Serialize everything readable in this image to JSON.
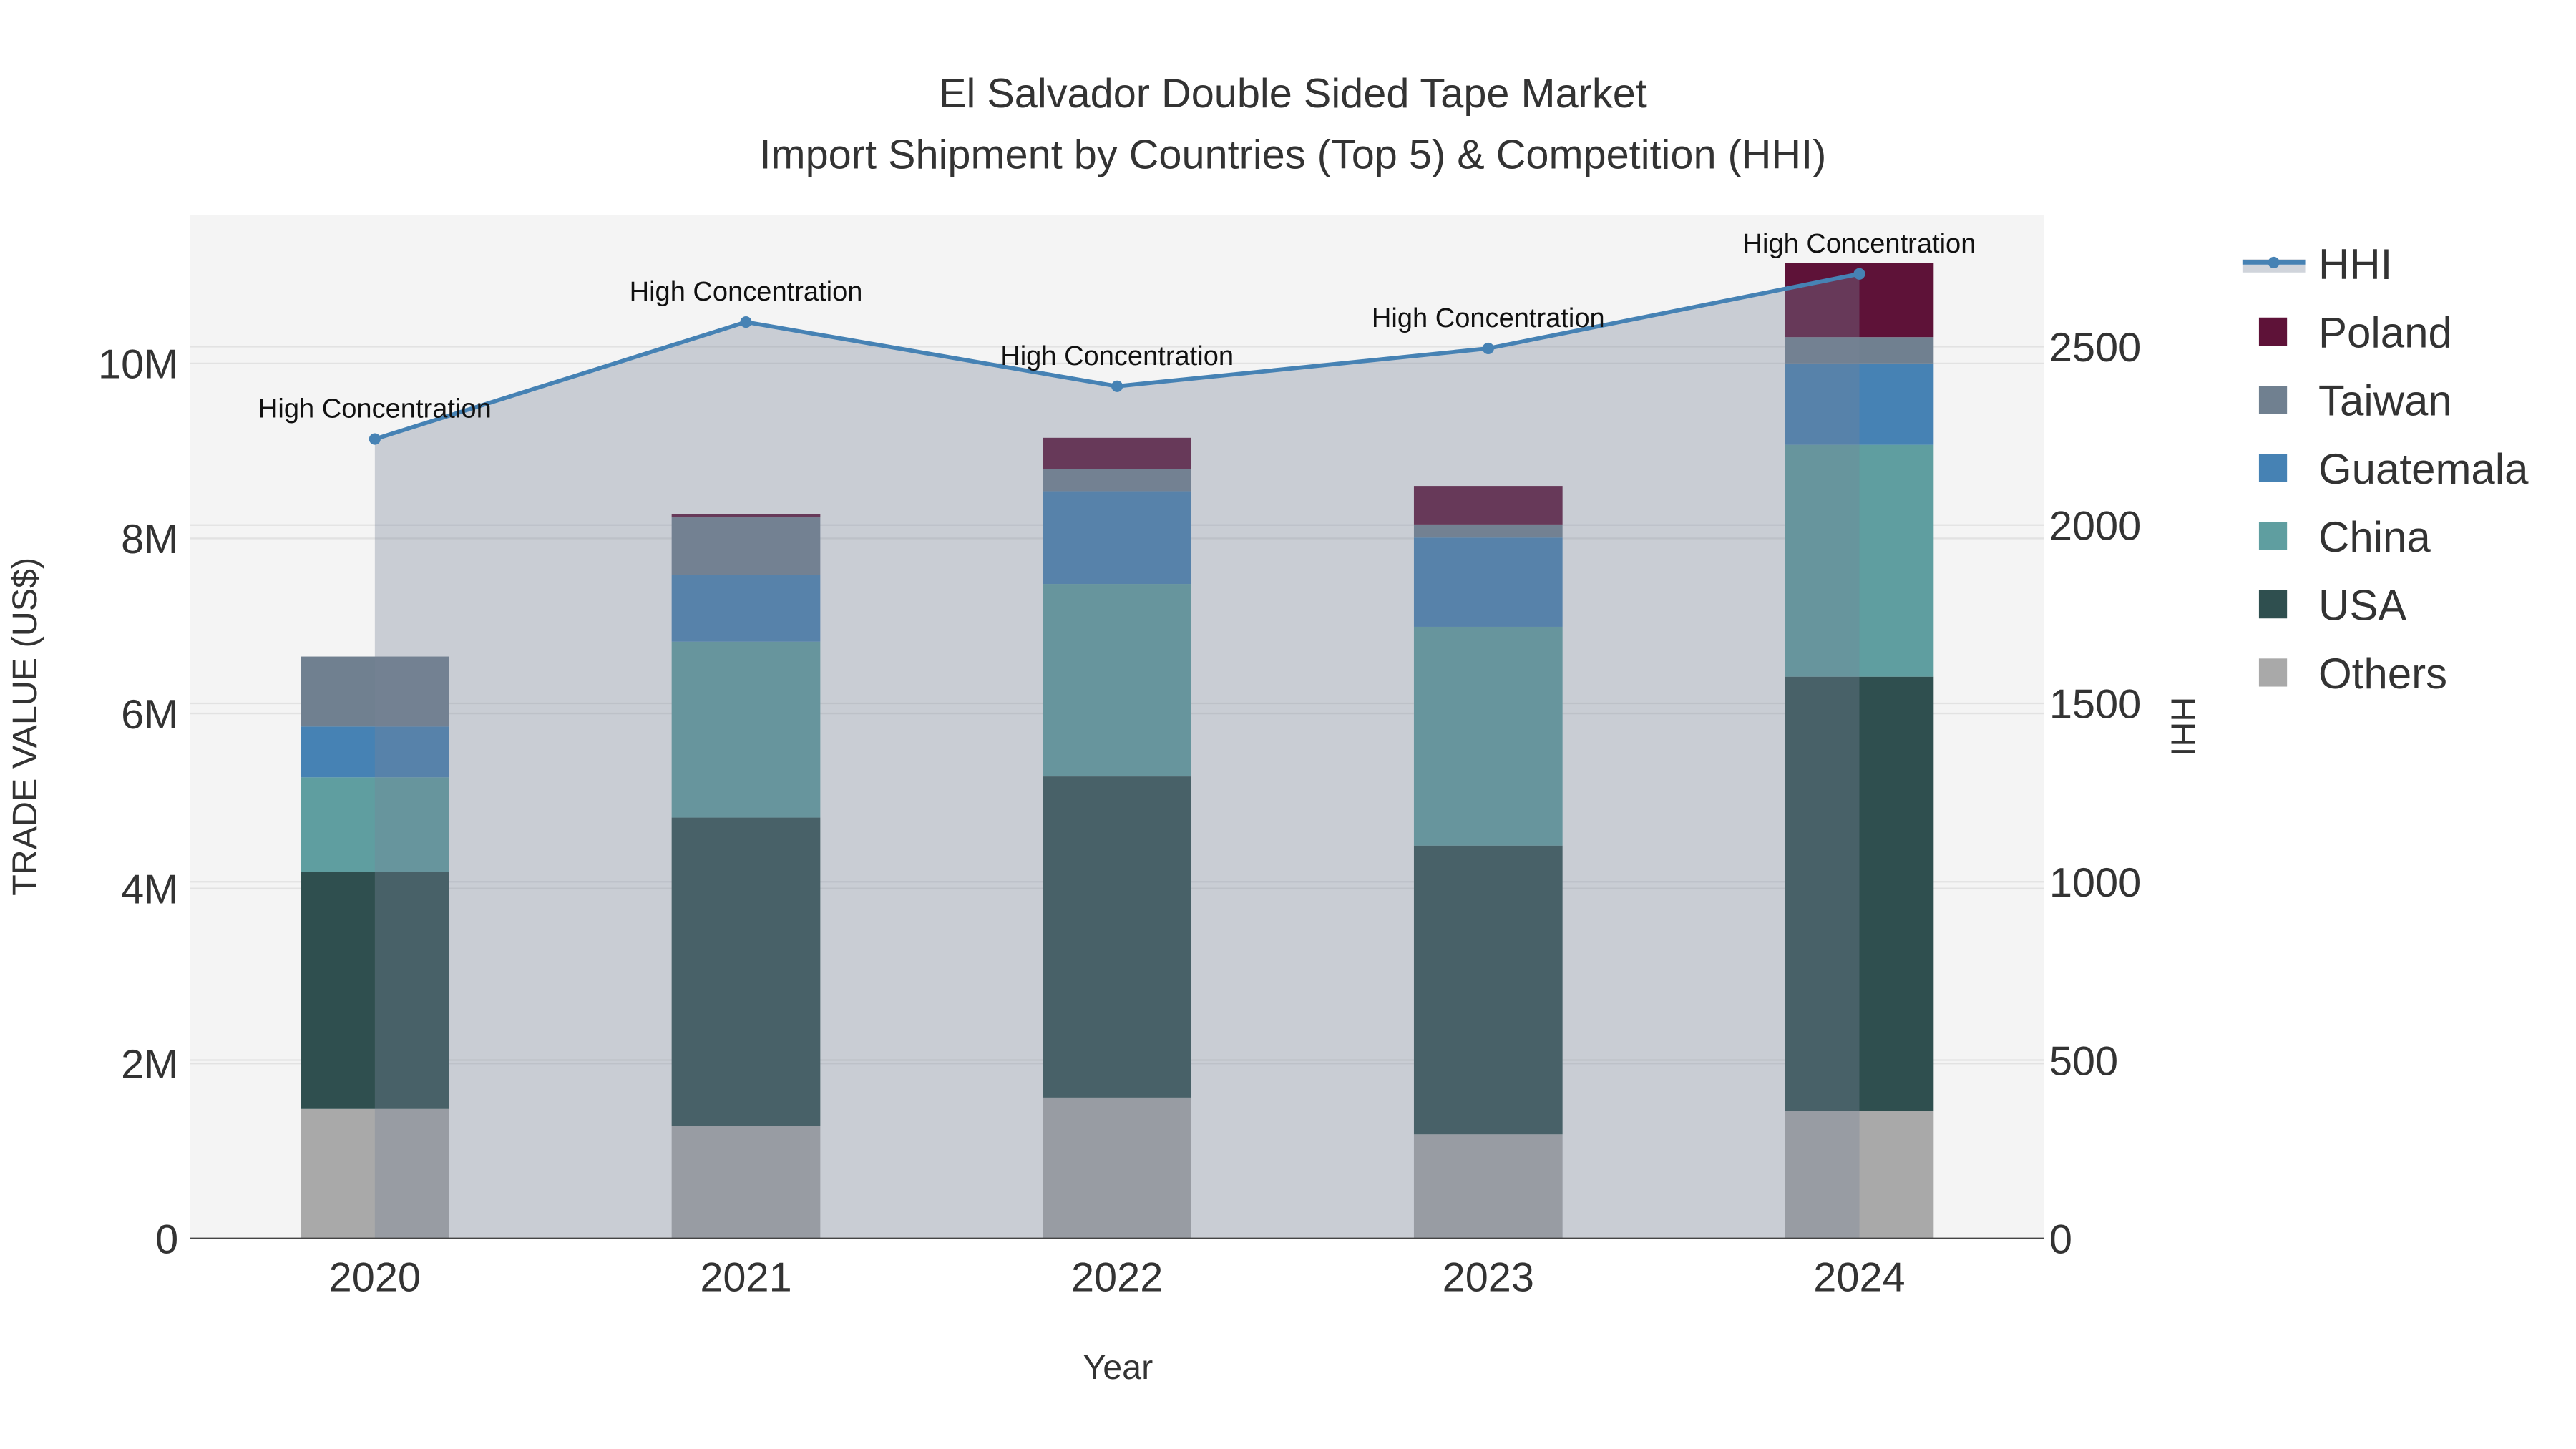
{
  "chart_data": {
    "type": "bar",
    "title_line1": "El Salvador Double Sided Tape Market",
    "title_line2": "Import Shipment by Countries (Top 5) & Competition (HHI)",
    "xlabel": "Year",
    "ylabel": "TRADE VALUE (US$)",
    "y2label": "HHI",
    "categories": [
      "2020",
      "2021",
      "2022",
      "2023",
      "2024"
    ],
    "ylim": [
      0,
      11700000
    ],
    "y2lim": [
      0,
      2870
    ],
    "yticks": [
      {
        "v": 0,
        "label": "0"
      },
      {
        "v": 2000000,
        "label": "2M"
      },
      {
        "v": 4000000,
        "label": "4M"
      },
      {
        "v": 6000000,
        "label": "6M"
      },
      {
        "v": 8000000,
        "label": "8M"
      },
      {
        "v": 10000000,
        "label": "10M"
      }
    ],
    "y2ticks": [
      {
        "v": 0,
        "label": "0"
      },
      {
        "v": 500,
        "label": "500"
      },
      {
        "v": 1000,
        "label": "1000"
      },
      {
        "v": 1500,
        "label": "1500"
      },
      {
        "v": 2000,
        "label": "2000"
      },
      {
        "v": 2500,
        "label": "2500"
      }
    ],
    "series": [
      {
        "name": "Others",
        "color": "#a9a9a9",
        "values": [
          1480000,
          1290000,
          1610000,
          1190000,
          1460000
        ]
      },
      {
        "name": "USA",
        "color": "#2f4f4f",
        "values": [
          2710000,
          3520000,
          3670000,
          3300000,
          4960000
        ]
      },
      {
        "name": "China",
        "color": "#5f9ea0",
        "values": [
          1080000,
          2010000,
          2200000,
          2500000,
          2650000
        ]
      },
      {
        "name": "Guatemala",
        "color": "#4682b4",
        "values": [
          580000,
          760000,
          1060000,
          1020000,
          930000
        ]
      },
      {
        "name": "Taiwan",
        "color": "#708090",
        "values": [
          800000,
          660000,
          250000,
          150000,
          300000
        ]
      },
      {
        "name": "Poland",
        "color": "#5e1238",
        "values": [
          0,
          40000,
          360000,
          440000,
          850000
        ]
      }
    ],
    "hhi": {
      "name": "HHI",
      "color": "#4682b4",
      "values": [
        2241,
        2569,
        2389,
        2495,
        2704
      ],
      "annotations": [
        "High Concentration",
        "High Concentration",
        "High Concentration",
        "High Concentration",
        "High Concentration"
      ]
    },
    "legend_order": [
      "HHI",
      "Poland",
      "Taiwan",
      "Guatemala",
      "China",
      "USA",
      "Others"
    ],
    "legend_position": "right"
  }
}
